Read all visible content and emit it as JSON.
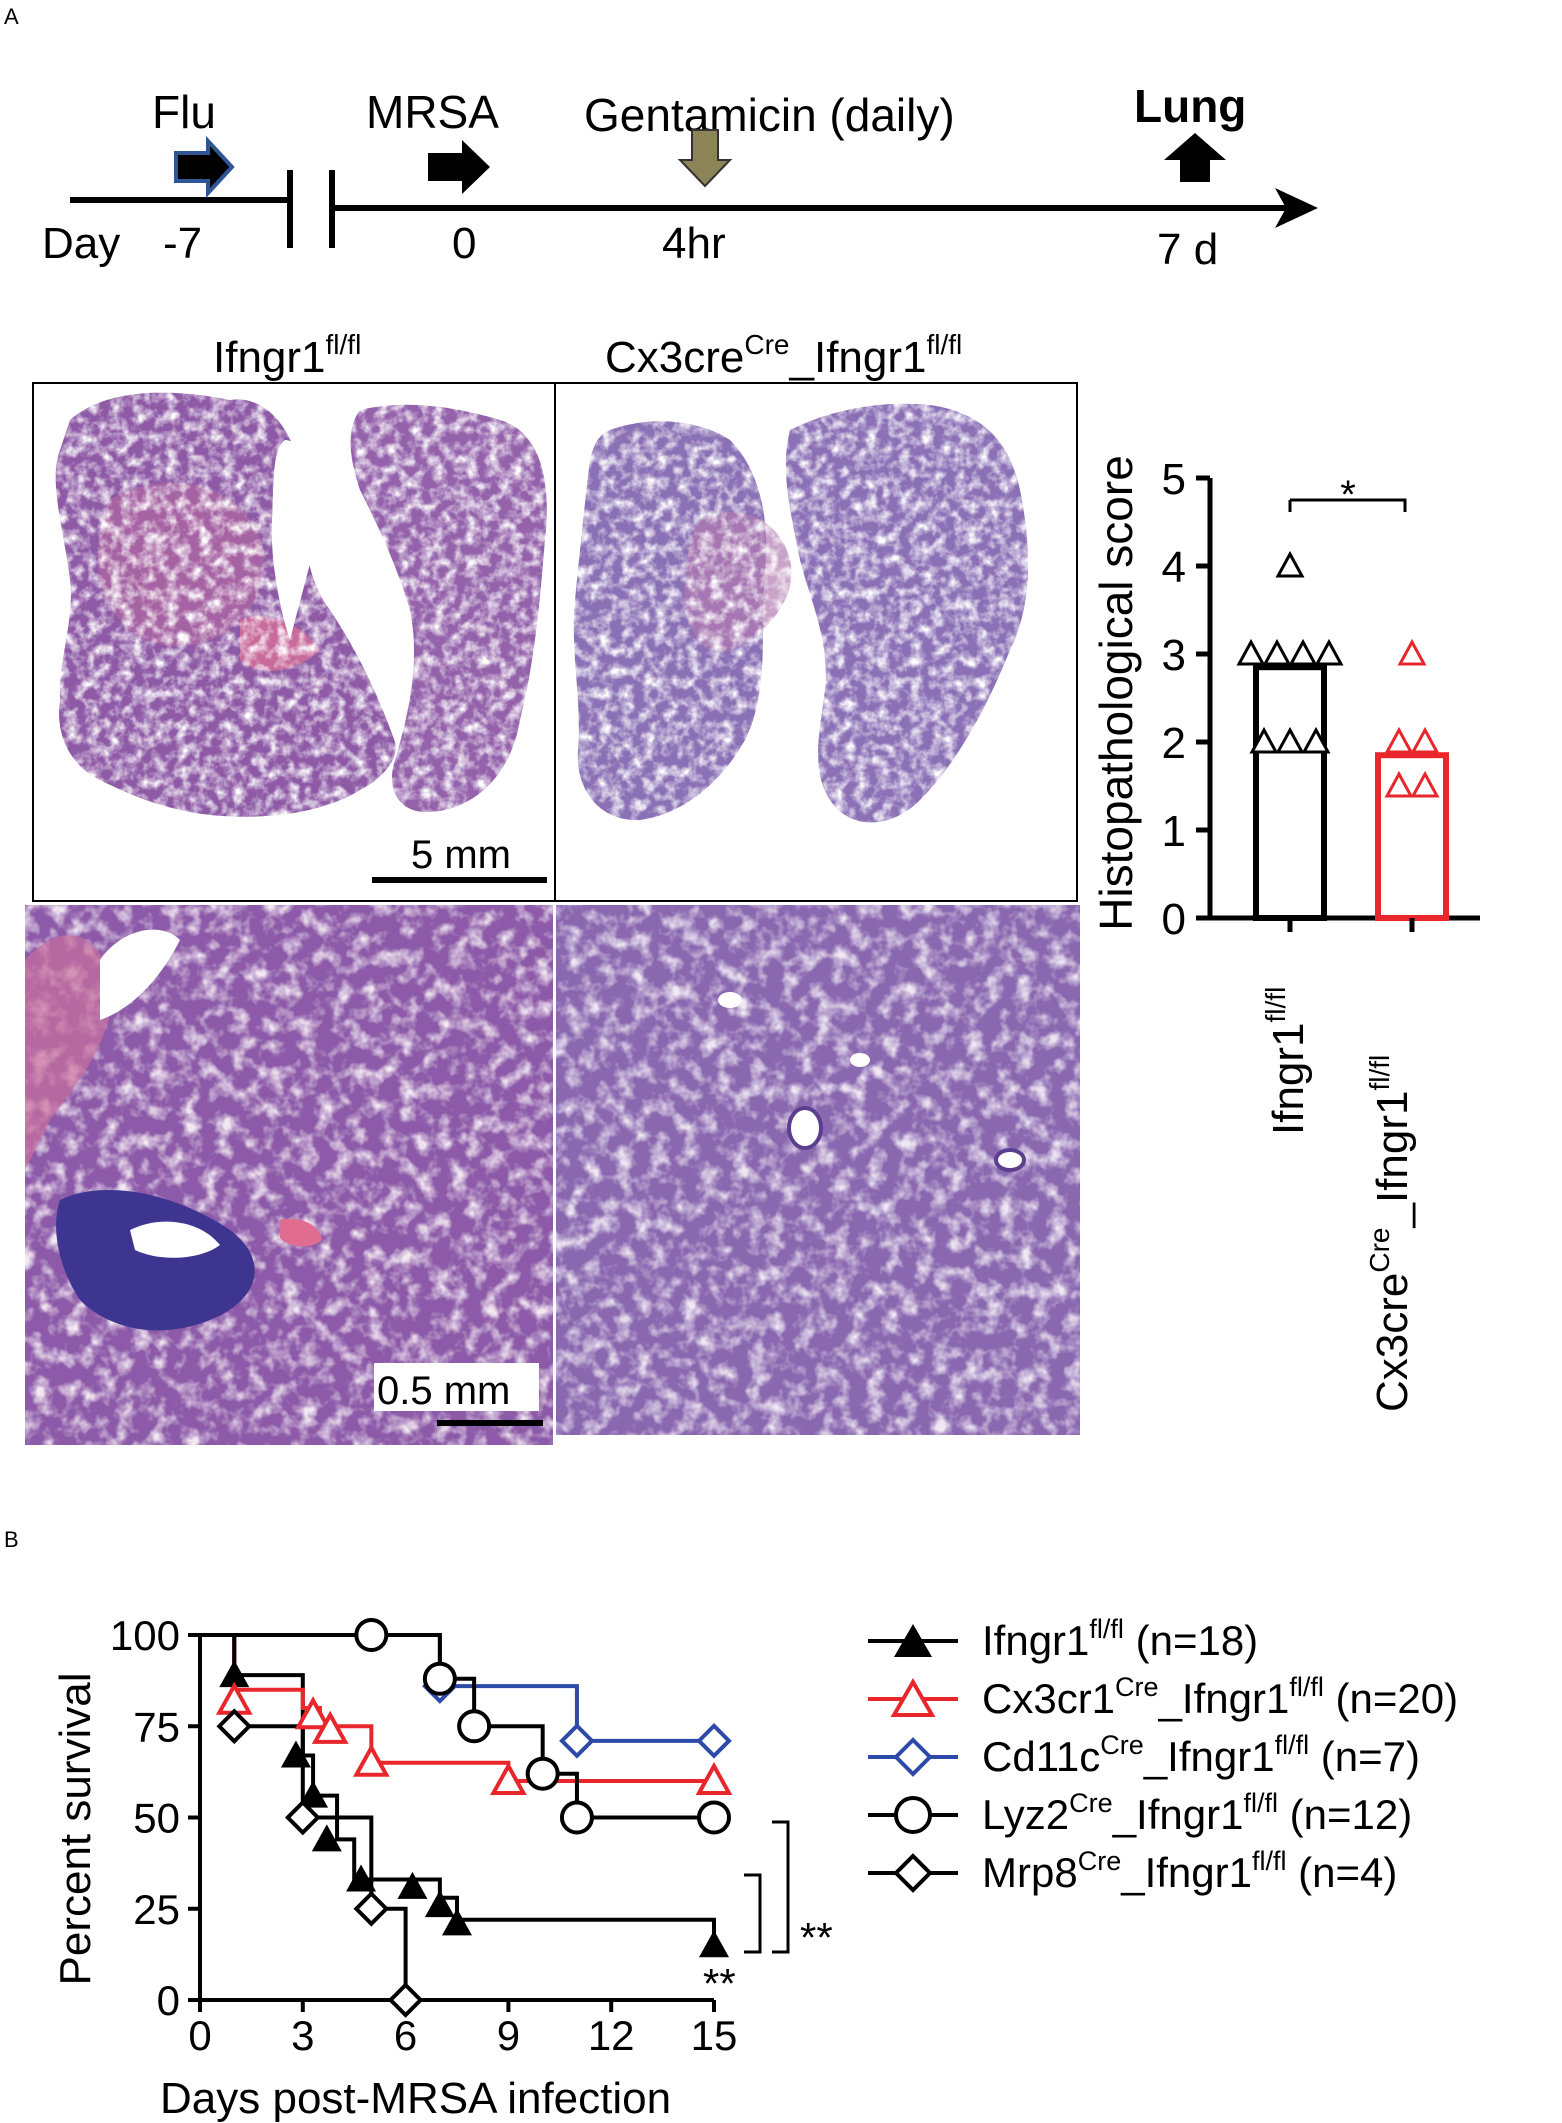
{
  "panel_labels": {
    "a": "A",
    "b": "B"
  },
  "timeline": {
    "day_label": "Day",
    "events": [
      {
        "label": "Flu",
        "time": "-7"
      },
      {
        "label": "MRSA",
        "time": "0"
      },
      {
        "label": "Gentamicin (daily)",
        "time": "4hr"
      },
      {
        "label": "Lung",
        "time": "7 d"
      }
    ],
    "arrow_colors": {
      "flu_fill": "#000000",
      "flu_outline": "#2f5597",
      "mrsa": "#000000",
      "gentamicin": "#8c8456",
      "lung": "#000000"
    }
  },
  "histology": {
    "group_titles": [
      {
        "base": "Ifngr1",
        "sup": "fl/fl"
      },
      {
        "base": "Cx3cre",
        "sup": "Cre",
        "base2": "_Ifngr1",
        "sup2": "fl/fl"
      }
    ],
    "scale_bars": {
      "low_mag": "5 mm",
      "high_mag": "0.5 mm"
    },
    "stain_colors": {
      "purple": "#8a5aa8",
      "pink": "#c7689f",
      "blue": "#4b3f9a"
    }
  },
  "chart_data": [
    {
      "type": "bar",
      "title": "",
      "ylabel": "Histopathological score",
      "ylim": [
        0,
        5
      ],
      "yticks": [
        "0",
        "1",
        "2",
        "3",
        "4",
        "5"
      ],
      "categories": [
        {
          "base": "Ifngr1",
          "sup": "fl/fl"
        },
        {
          "base": "Cx3cre",
          "sup": "Cre",
          "base2": "_Ifngr1",
          "sup2": "fl/fl"
        }
      ],
      "values": [
        2.85,
        1.85
      ],
      "points": [
        [
          4,
          3,
          3,
          3,
          3,
          2,
          2,
          2
        ],
        [
          3,
          2,
          2,
          1.5,
          1.5
        ]
      ],
      "colors": [
        "#000000",
        "#e8262b"
      ],
      "significance": "*"
    },
    {
      "type": "line",
      "title": "",
      "xlabel": "Days post-MRSA  infection",
      "ylabel": "Percent survival",
      "xlim": [
        0,
        15
      ],
      "ylim": [
        0,
        100
      ],
      "xticks": [
        "0",
        "3",
        "6",
        "9",
        "12",
        "15"
      ],
      "yticks": [
        "0",
        "25",
        "50",
        "75",
        "100"
      ],
      "significance": [
        "**",
        "**"
      ],
      "series": [
        {
          "name": "Ifngr1",
          "sup": "fl/fl",
          "n_label": "(n=18)",
          "color": "#000000",
          "marker": "triangle-filled",
          "steps": [
            [
              0,
              100
            ],
            [
              1,
              89
            ],
            [
              3,
              67
            ],
            [
              3.3,
              56
            ],
            [
              4,
              44
            ],
            [
              4.5,
              33
            ],
            [
              6,
              33
            ],
            [
              7,
              28
            ],
            [
              7.5,
              22
            ],
            [
              15,
              17
            ]
          ],
          "markers": [
            [
              1,
              89
            ],
            [
              2.8,
              67
            ],
            [
              3.3,
              56
            ],
            [
              3.7,
              44
            ],
            [
              4.7,
              33
            ],
            [
              6.2,
              31
            ],
            [
              7,
              26
            ],
            [
              7.5,
              21
            ],
            [
              15,
              15
            ]
          ]
        },
        {
          "name": "Cx3cr1",
          "sup": "Cre",
          "name2": "_Ifngr1",
          "sup2": "fl/fl",
          "n_label": "(n=20)",
          "color": "#e8262b",
          "marker": "triangle-open",
          "steps": [
            [
              0,
              100
            ],
            [
              1,
              85
            ],
            [
              3,
              80
            ],
            [
              3.5,
              75
            ],
            [
              5,
              65
            ],
            [
              9,
              60
            ],
            [
              15,
              60
            ]
          ],
          "markers": [
            [
              1,
              82
            ],
            [
              3.3,
              78
            ],
            [
              3.8,
              74
            ],
            [
              5,
              65
            ],
            [
              9,
              60
            ],
            [
              15,
              60
            ]
          ]
        },
        {
          "name": "Cd11c",
          "sup": "Cre",
          "name2": "_Ifngr1",
          "sup2": "fl/fl",
          "n_label": "(n=7)",
          "color": "#2e4aa8",
          "marker": "diamond-open",
          "steps": [
            [
              0,
              100
            ],
            [
              7,
              86
            ],
            [
              11,
              71
            ],
            [
              15,
              71
            ]
          ],
          "markers": [
            [
              7,
              86
            ],
            [
              11,
              71
            ],
            [
              15,
              71
            ]
          ]
        },
        {
          "name": "Lyz2",
          "sup": "Cre",
          "name2": "_Ifngr1",
          "sup2": "fl/fl",
          "n_label": "(n=12)",
          "color": "#000000",
          "marker": "circle-open",
          "steps": [
            [
              0,
              100
            ],
            [
              7,
              88
            ],
            [
              8,
              75
            ],
            [
              10,
              62
            ],
            [
              11,
              50
            ],
            [
              15,
              50
            ]
          ],
          "markers": [
            [
              5,
              100
            ],
            [
              7,
              88
            ],
            [
              8,
              75
            ],
            [
              10,
              62
            ],
            [
              11,
              50
            ],
            [
              15,
              50
            ]
          ]
        },
        {
          "name": "Mrp8",
          "sup": "Cre",
          "name2": "_Ifngr1",
          "sup2": "fl/fl",
          "n_label": "(n=4)",
          "color": "#000000",
          "marker": "diamond-open",
          "steps": [
            [
              0,
              100
            ],
            [
              1,
              75
            ],
            [
              3,
              50
            ],
            [
              5,
              25
            ],
            [
              6,
              0
            ]
          ],
          "markers": [
            [
              1,
              75
            ],
            [
              3,
              50
            ],
            [
              5,
              25
            ],
            [
              6,
              0
            ]
          ]
        }
      ]
    }
  ]
}
